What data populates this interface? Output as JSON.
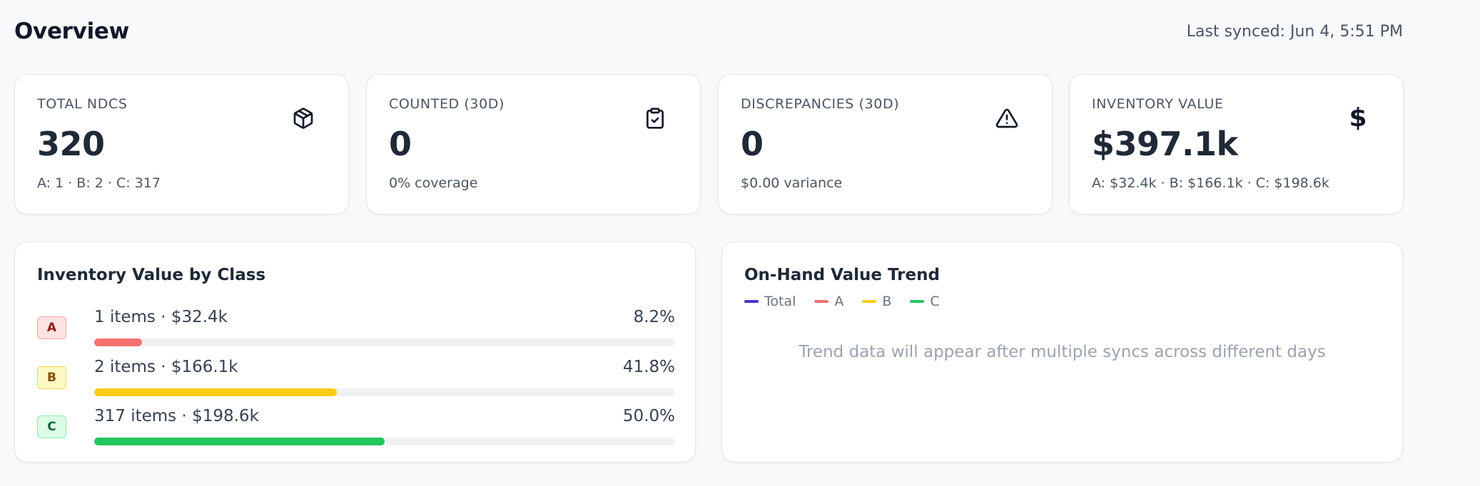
{
  "header": {
    "title": "Overview",
    "last_synced": "Last synced: Jun 4, 5:51 PM"
  },
  "kpis": [
    {
      "label": "TOTAL NDCS",
      "value": "320",
      "sub": "A: 1 · B: 2 · C: 317",
      "icon": "package-icon"
    },
    {
      "label": "COUNTED (30D)",
      "value": "0",
      "sub": "0% coverage",
      "icon": "clipboard-check-icon"
    },
    {
      "label": "DISCREPANCIES (30D)",
      "value": "0",
      "sub": "$0.00 variance",
      "icon": "alert-triangle-icon"
    },
    {
      "label": "INVENTORY VALUE",
      "value": "$397.1k",
      "sub": "A: $32.4k · B: $166.1k · C: $198.6k",
      "icon": "dollar-icon",
      "glyph": "$"
    }
  ],
  "class_breakdown": {
    "title": "Inventory Value by Class",
    "rows": [
      {
        "badge": "A",
        "text": "1 items · $32.4k",
        "pct": "8.2%",
        "fraction": 0.082,
        "color": "#f87171"
      },
      {
        "badge": "B",
        "text": "2 items · $166.1k",
        "pct": "41.8%",
        "fraction": 0.418,
        "color": "#facc15"
      },
      {
        "badge": "C",
        "text": "317 items · $198.6k",
        "pct": "50.0%",
        "fraction": 0.5,
        "color": "#22c55e"
      }
    ]
  },
  "trend": {
    "title": "On-Hand Value Trend",
    "legend": [
      {
        "label": "Total",
        "color": "#4338ca"
      },
      {
        "label": "A",
        "color": "#f87171"
      },
      {
        "label": "B",
        "color": "#facc15"
      },
      {
        "label": "C",
        "color": "#22c55e"
      }
    ],
    "empty_message": "Trend data will appear after multiple syncs across different days"
  }
}
